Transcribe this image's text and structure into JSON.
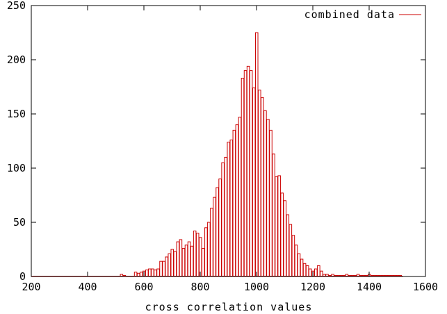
{
  "chart_data": {
    "type": "bar",
    "title": "",
    "xlabel": "cross correlation values",
    "ylabel": "",
    "xlim": [
      200,
      1600
    ],
    "ylim": [
      0,
      250
    ],
    "xticks": [
      200,
      400,
      600,
      800,
      1000,
      1200,
      1400,
      1600
    ],
    "yticks": [
      0,
      50,
      100,
      150,
      200,
      250
    ],
    "grid": false,
    "legend": "top-right",
    "bin_width": 10,
    "series": [
      {
        "name": "combined data",
        "color": "#cc0000",
        "x": [
          520,
          530,
          570,
          580,
          590,
          600,
          610,
          620,
          630,
          640,
          650,
          660,
          670,
          680,
          690,
          700,
          710,
          720,
          730,
          740,
          750,
          760,
          770,
          780,
          790,
          800,
          810,
          820,
          830,
          840,
          850,
          860,
          870,
          880,
          890,
          900,
          910,
          920,
          930,
          940,
          950,
          960,
          970,
          980,
          990,
          1000,
          1010,
          1020,
          1030,
          1040,
          1050,
          1060,
          1070,
          1080,
          1090,
          1100,
          1110,
          1120,
          1130,
          1140,
          1150,
          1160,
          1170,
          1180,
          1190,
          1200,
          1210,
          1220,
          1230,
          1240,
          1250,
          1260,
          1270,
          1280,
          1290,
          1300,
          1310,
          1320,
          1330,
          1340,
          1350,
          1360,
          1370,
          1380,
          1390,
          1400,
          1410,
          1420,
          1430,
          1440,
          1450,
          1460,
          1470,
          1480,
          1490,
          1500,
          1510
        ],
        "values": [
          2,
          1,
          4,
          3,
          4,
          5,
          6,
          7,
          7,
          6,
          7,
          14,
          14,
          18,
          21,
          25,
          23,
          32,
          34,
          26,
          29,
          32,
          28,
          42,
          40,
          36,
          26,
          45,
          50,
          63,
          73,
          82,
          90,
          105,
          110,
          124,
          126,
          135,
          140,
          147,
          183,
          190,
          194,
          190,
          174,
          225,
          172,
          165,
          153,
          145,
          135,
          113,
          92,
          93,
          77,
          70,
          57,
          48,
          38,
          29,
          21,
          16,
          12,
          10,
          7,
          5,
          7,
          10,
          5,
          2,
          2,
          1,
          2,
          1,
          1,
          1,
          1,
          2,
          1,
          1,
          1,
          2,
          1,
          1,
          1,
          2,
          1,
          1,
          1,
          1,
          1,
          1,
          1,
          1,
          1,
          1,
          1
        ]
      }
    ]
  }
}
